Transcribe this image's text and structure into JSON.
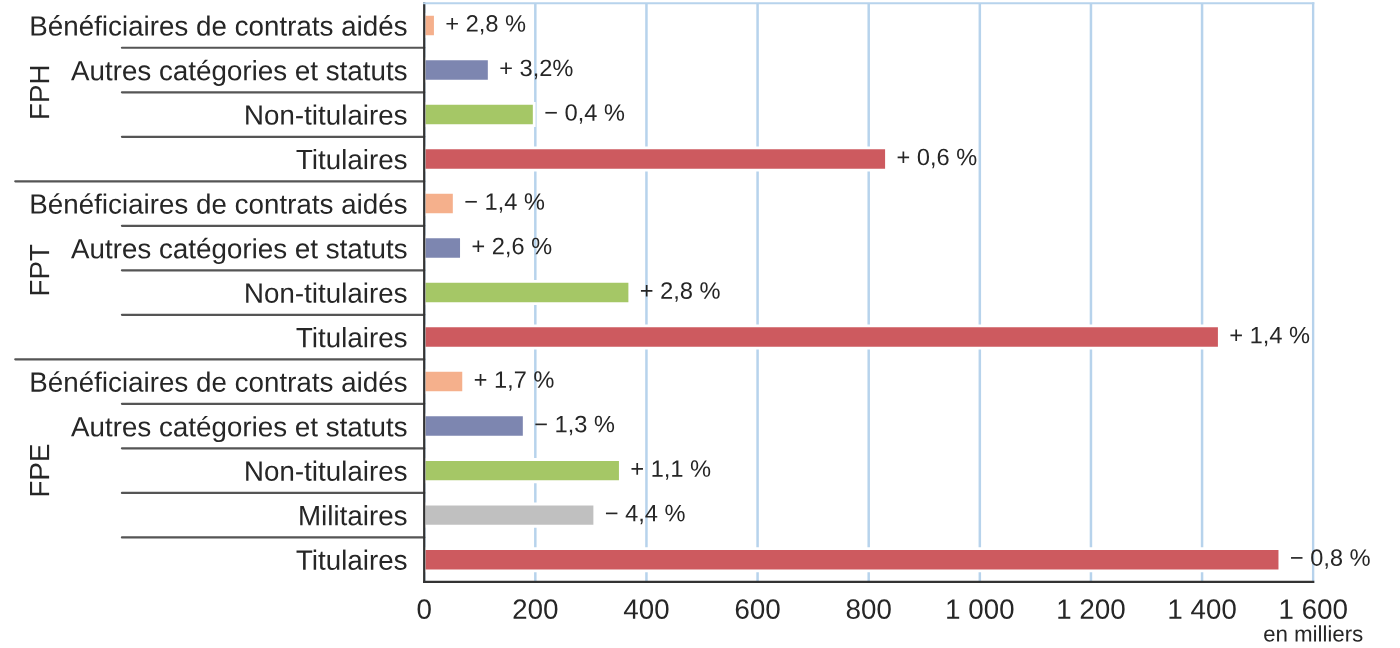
{
  "chart_data": {
    "type": "bar",
    "orientation": "horizontal",
    "categories": [
      "Bénéficiaires de contrats aidés",
      "Autres catégories et statuts",
      "Non-titulaires",
      "Titulaires",
      "Bénéficiaires de contrats aidés",
      "Autres catégories et statuts",
      "Non-titulaires",
      "Titulaires",
      "Bénéficiaires de contrats aidés",
      "Autres catégories et statuts",
      "Non-titulaires",
      "Militaires",
      "Titulaires"
    ],
    "values": [
      20,
      117,
      198,
      832,
      54,
      67,
      370,
      1431,
      71,
      180,
      353,
      307,
      1540
    ],
    "colors": [
      "#f5b08c",
      "#7d86b0",
      "#a5c766",
      "#cd5a5f",
      "#f5b08c",
      "#7d86b0",
      "#a5c766",
      "#cd5a5f",
      "#f5b08c",
      "#7d86b0",
      "#a5c766",
      "#c0c0c0",
      "#cd5a5f"
    ],
    "xlim": [
      0,
      1600
    ],
    "xticks": [
      0,
      200,
      400,
      600,
      800,
      {
        "value": 1000,
        "label": "1 000"
      },
      {
        "value": 1200,
        "label": "1 200"
      },
      {
        "value": 1400,
        "label": "1 400"
      },
      {
        "value": 1600,
        "label": "1 600"
      }
    ],
    "xlabel": "en milliers",
    "annotations": [
      "FPH",
      "FPT",
      "FPE",
      "+ 2,8 %",
      "+ 3,2%",
      "− 0,4 %",
      "+ 0,6 %",
      "− 1,4 %",
      "+ 2,6 %",
      "+ 2,8 %",
      "+ 1,4 %",
      "+ 1,7 %",
      "− 1,3 %",
      "+ 1,1 %",
      "− 4,4 %",
      "− 0,8 %"
    ],
    "grid": "x"
  }
}
